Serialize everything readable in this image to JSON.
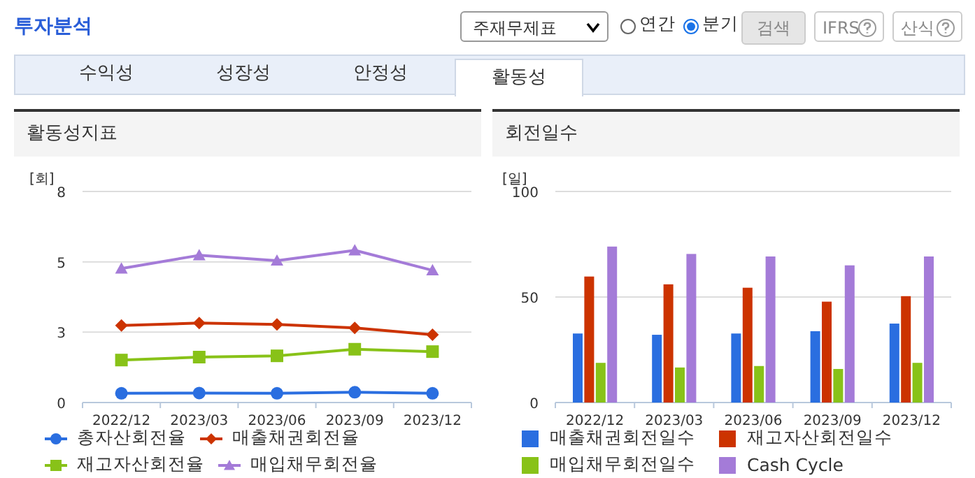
{
  "chart_data": [
    {
      "type": "other",
      "title": "투자분석",
      "annotations": [
        "주재무제표",
        "연간",
        "분기",
        "검색",
        "IFRS",
        "산식",
        "수익성",
        "성장성",
        "안정성",
        "활동성"
      ]
    },
    {
      "type": "line",
      "title": "활동성지표",
      "ylabel": "[회]",
      "categories": [
        "2022/12",
        "2023/03",
        "2023/06",
        "2023/09",
        "2023/12"
      ],
      "ylim": [
        0,
        8
      ],
      "yticks": [
        0,
        {
          "value": 2.667,
          "label": "3"
        },
        {
          "value": 5.333,
          "label": "5"
        },
        8
      ],
      "grid": "y",
      "legend": "bottom",
      "series": [
        {
          "name": "총자산회전율",
          "color": "#2a6ee0",
          "marker": "circle",
          "values": [
            0.35,
            0.36,
            0.35,
            0.39,
            0.35
          ]
        },
        {
          "name": "매출채권회전율",
          "color": "#cc3300",
          "marker": "diamond",
          "values": [
            2.92,
            3.01,
            2.96,
            2.83,
            2.57
          ]
        },
        {
          "name": "재고자산회전율",
          "color": "#88c218",
          "marker": "square",
          "values": [
            1.61,
            1.72,
            1.77,
            2.02,
            1.93
          ]
        },
        {
          "name": "매입채무회전율",
          "color": "#a47bd8",
          "marker": "triangle",
          "values": [
            5.08,
            5.58,
            5.38,
            5.77,
            5.01
          ]
        }
      ]
    },
    {
      "type": "bar",
      "title": "회전일수",
      "ylabel": "[일]",
      "categories": [
        "2022/12",
        "2023/03",
        "2023/06",
        "2023/09",
        "2023/12"
      ],
      "ylim": [
        0,
        100
      ],
      "yticks": [
        0,
        50,
        100
      ],
      "grid": "y",
      "legend": "bottom",
      "series": [
        {
          "name": "매출채권회전일수",
          "color": "#2a6ee0",
          "values": [
            32.7,
            32.1,
            32.7,
            33.8,
            37.4
          ]
        },
        {
          "name": "재고자산회전일수",
          "color": "#cc3300",
          "values": [
            59.7,
            56.0,
            54.4,
            47.8,
            50.4
          ]
        },
        {
          "name": "매입채무회전일수",
          "color": "#88c218",
          "values": [
            18.8,
            16.6,
            17.3,
            15.9,
            18.8
          ]
        },
        {
          "name": "Cash Cycle",
          "color": "#a47bd8",
          "values": [
            73.9,
            70.4,
            69.2,
            65.0,
            69.2
          ]
        }
      ]
    }
  ]
}
